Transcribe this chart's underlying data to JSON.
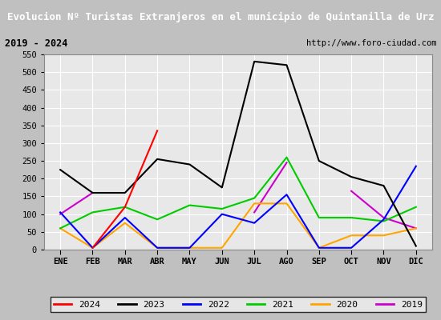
{
  "title": "Evolucion Nº Turistas Extranjeros en el municipio de Quintanilla de Urz",
  "subtitle_left": "2019 - 2024",
  "subtitle_right": "http://www.foro-ciudad.com",
  "months": [
    "ENE",
    "FEB",
    "MAR",
    "ABR",
    "MAY",
    "JUN",
    "JUL",
    "AGO",
    "SEP",
    "OCT",
    "NOV",
    "DIC"
  ],
  "series": {
    "2024": [
      null,
      5,
      120,
      335,
      null,
      null,
      null,
      null,
      null,
      null,
      null,
      null
    ],
    "2023": [
      225,
      160,
      160,
      255,
      240,
      175,
      530,
      520,
      250,
      205,
      180,
      10
    ],
    "2022": [
      105,
      5,
      90,
      5,
      5,
      100,
      75,
      155,
      5,
      5,
      85,
      235
    ],
    "2021": [
      60,
      105,
      120,
      85,
      125,
      115,
      145,
      260,
      90,
      90,
      80,
      120
    ],
    "2020": [
      60,
      5,
      75,
      5,
      5,
      5,
      130,
      130,
      5,
      40,
      40,
      60
    ],
    "2019": [
      100,
      160,
      null,
      null,
      null,
      null,
      105,
      245,
      null,
      165,
      90,
      60
    ]
  },
  "colors": {
    "2024": "#ff0000",
    "2023": "#000000",
    "2022": "#0000ff",
    "2021": "#00cc00",
    "2020": "#ffa500",
    "2019": "#cc00cc"
  },
  "ylim": [
    0,
    550
  ],
  "yticks": [
    0,
    50,
    100,
    150,
    200,
    250,
    300,
    350,
    400,
    450,
    500,
    550
  ],
  "title_bg": "#2060c0",
  "title_color": "#ffffff",
  "subtitle_bg": "#e8e8e8",
  "plot_bg": "#e8e8e8",
  "grid_color": "#ffffff",
  "fig_bg": "#c0c0c0"
}
